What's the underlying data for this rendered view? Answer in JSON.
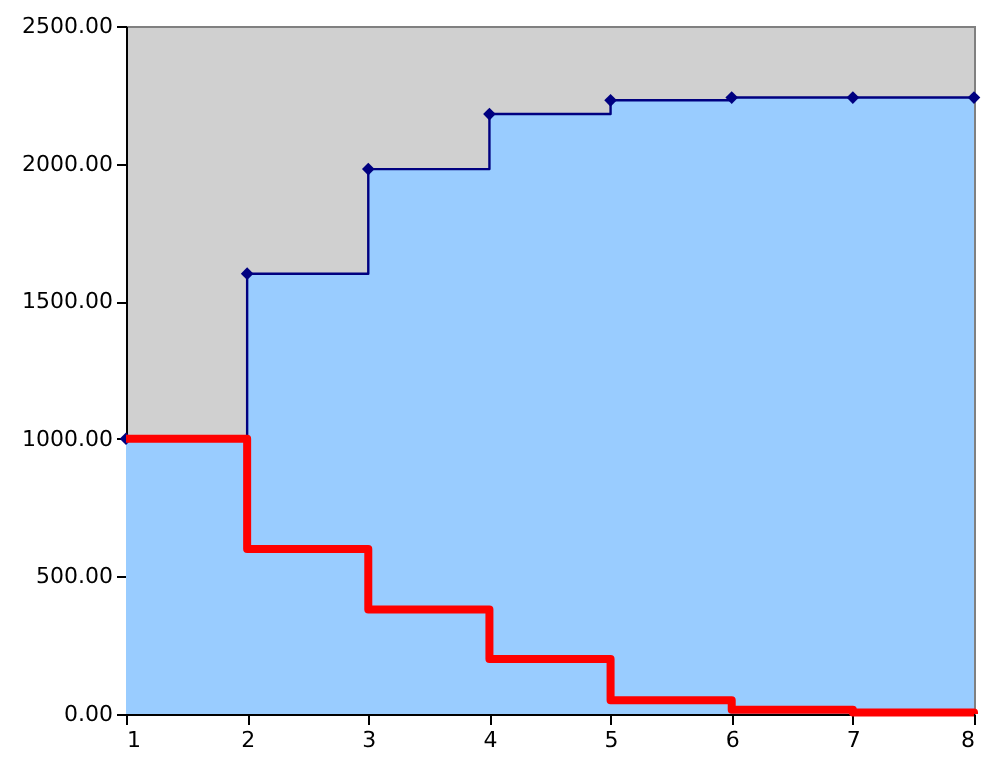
{
  "chart_data": {
    "type": "step",
    "x": [
      1,
      2,
      3,
      4,
      5,
      6,
      7,
      8
    ],
    "series": [
      {
        "type": "area",
        "color": "#99ccff",
        "values": [
          1000,
          1600,
          1980,
          2180,
          2230,
          2240,
          2240,
          2240
        ]
      },
      {
        "type": "step",
        "color": "#000080",
        "marker": "diamond",
        "values": [
          1000,
          1600,
          1980,
          2180,
          2230,
          2240,
          2240,
          2240
        ]
      },
      {
        "type": "step",
        "color": "#ff0000",
        "values": [
          1000,
          600,
          380,
          200,
          50,
          15,
          5,
          0
        ]
      }
    ],
    "xlim": [
      1,
      8
    ],
    "xticks": [
      1,
      2,
      3,
      4,
      5,
      6,
      7,
      8
    ],
    "ylim": [
      0,
      2500
    ],
    "yticks": [
      {
        "value": 0,
        "label": "0.00"
      },
      {
        "value": 500,
        "label": "500.00"
      },
      {
        "value": 1000,
        "label": "1000.00"
      },
      {
        "value": 1500,
        "label": "1500.00"
      },
      {
        "value": 2000,
        "label": "2000.00"
      },
      {
        "value": 2500,
        "label": "2500.00"
      }
    ],
    "grid": false
  }
}
